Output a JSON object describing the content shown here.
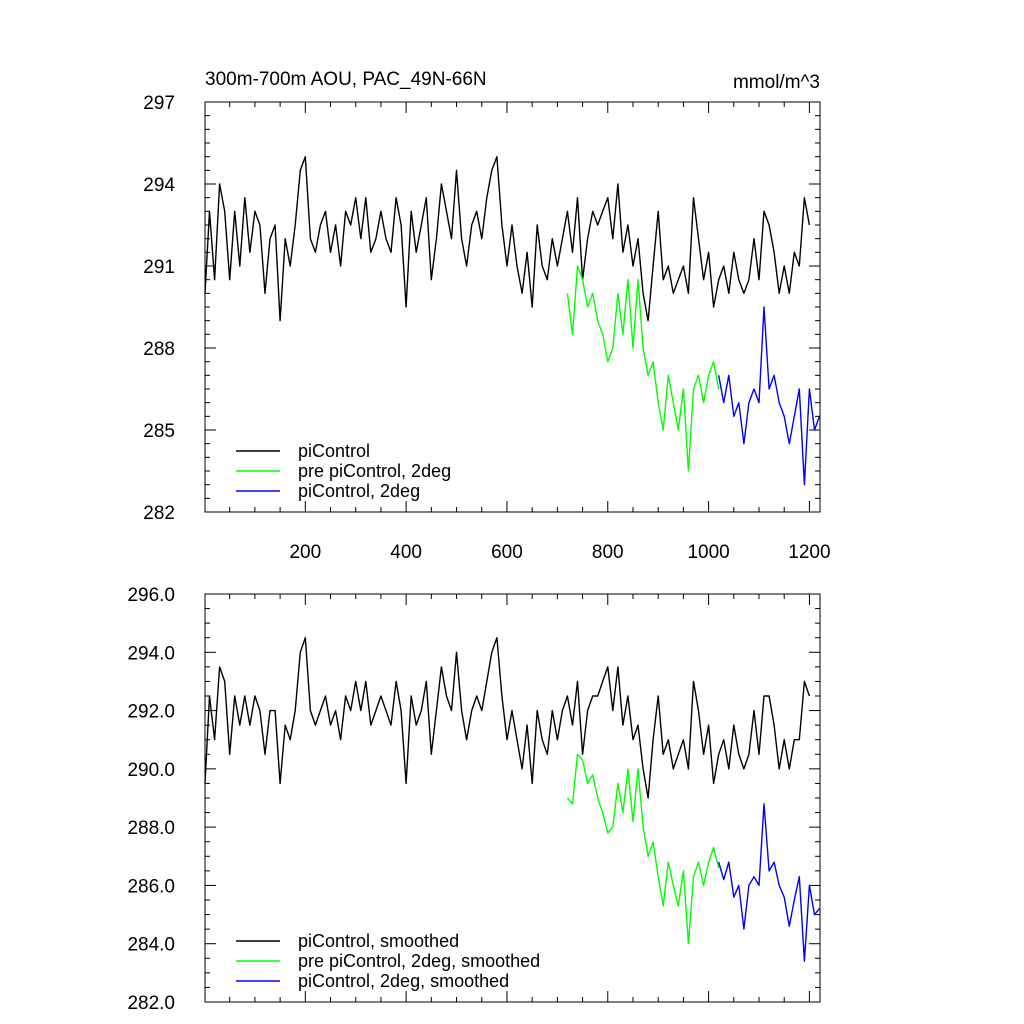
{
  "chart_data": [
    {
      "type": "line",
      "title": "300m-700m AOU, PAC_49N-66N",
      "units": "mmol/m^3",
      "xlim": [
        1,
        1221
      ],
      "ylim": [
        282,
        297
      ],
      "xticks": [
        200,
        400,
        600,
        800,
        1000,
        1200
      ],
      "xtick_labels": [
        "200",
        "400",
        "600",
        "800",
        "1000",
        "1200"
      ],
      "yticks": [
        282,
        285,
        288,
        291,
        294,
        297
      ],
      "ytick_labels": [
        "282",
        "285",
        "288",
        "291",
        "294",
        "297"
      ],
      "legend": "lower-left",
      "series": [
        {
          "name": "piControl",
          "color": "#000000",
          "x": [
            1,
            10,
            20,
            30,
            40,
            50,
            60,
            70,
            80,
            90,
            100,
            110,
            120,
            130,
            140,
            150,
            160,
            170,
            180,
            190,
            200,
            210,
            220,
            230,
            240,
            250,
            260,
            270,
            280,
            290,
            300,
            310,
            320,
            330,
            340,
            350,
            360,
            370,
            380,
            390,
            400,
            410,
            420,
            430,
            440,
            450,
            460,
            470,
            480,
            490,
            500,
            510,
            520,
            530,
            540,
            550,
            560,
            570,
            580,
            590,
            600,
            610,
            620,
            630,
            640,
            650,
            660,
            670,
            680,
            690,
            700,
            710,
            720,
            730,
            740,
            750,
            760,
            770,
            780,
            790,
            800,
            810,
            820,
            830,
            840,
            850,
            860,
            870,
            880,
            890,
            900,
            910,
            920,
            930,
            940,
            950,
            960,
            970,
            980,
            990,
            1000,
            1010,
            1020,
            1030,
            1040,
            1050,
            1060,
            1070,
            1080,
            1090,
            1100,
            1110,
            1120,
            1130,
            1140,
            1150,
            1160,
            1170,
            1180,
            1190,
            1200
          ],
          "y": [
            290.0,
            293.0,
            290.5,
            294.0,
            293.0,
            290.5,
            293.0,
            291.0,
            293.5,
            291.5,
            293.0,
            292.5,
            290.0,
            292.0,
            292.5,
            289.0,
            292.0,
            291.0,
            292.5,
            294.5,
            295.0,
            292.0,
            291.5,
            292.5,
            293.0,
            291.5,
            292.5,
            291.0,
            293.0,
            292.5,
            293.5,
            292.0,
            293.5,
            291.5,
            292.0,
            293.0,
            292.0,
            291.5,
            293.5,
            292.5,
            289.5,
            293.0,
            291.5,
            292.5,
            293.5,
            290.5,
            292.0,
            294.0,
            293.0,
            292.0,
            294.5,
            292.0,
            291.0,
            292.5,
            293.0,
            292.0,
            293.5,
            294.5,
            295.0,
            292.5,
            291.0,
            292.5,
            291.0,
            290.0,
            291.5,
            289.5,
            292.5,
            291.0,
            290.5,
            292.0,
            291.0,
            292.0,
            293.0,
            291.5,
            293.5,
            290.5,
            292.0,
            293.0,
            292.5,
            293.0,
            293.5,
            292.0,
            294.0,
            291.5,
            292.5,
            291.0,
            292.0,
            290.0,
            289.0,
            291.0,
            293.0,
            290.5,
            291.0,
            290.0,
            290.5,
            291.0,
            290.0,
            293.5,
            292.0,
            290.5,
            291.5,
            289.5,
            290.5,
            291.0,
            290.0,
            291.5,
            290.5,
            290.0,
            290.5,
            292.0,
            290.5,
            293.0,
            292.5,
            291.5,
            290.0,
            291.0,
            290.0,
            291.5,
            291.0,
            293.5,
            292.5
          ]
        },
        {
          "name": "pre piControl, 2deg",
          "color": "#00ff00",
          "x": [
            720,
            730,
            740,
            750,
            760,
            770,
            780,
            790,
            800,
            810,
            820,
            830,
            840,
            850,
            860,
            870,
            880,
            890,
            900,
            910,
            920,
            930,
            940,
            950,
            960,
            970,
            980,
            990,
            1000,
            1010,
            1020
          ],
          "y": [
            290.0,
            288.5,
            291.0,
            290.5,
            289.5,
            290.0,
            289.0,
            288.5,
            287.5,
            288.0,
            290.0,
            288.5,
            290.5,
            288.0,
            290.5,
            288.0,
            287.0,
            287.5,
            286.0,
            285.0,
            287.0,
            286.0,
            285.0,
            286.5,
            283.5,
            286.5,
            287.0,
            286.0,
            287.0,
            287.5,
            286.5
          ]
        },
        {
          "name": "piControl, 2deg",
          "color": "#0000ff",
          "x": [
            1020,
            1030,
            1040,
            1050,
            1060,
            1070,
            1080,
            1090,
            1100,
            1110,
            1120,
            1130,
            1140,
            1150,
            1160,
            1170,
            1180,
            1190,
            1200,
            1210,
            1220
          ],
          "y": [
            287.0,
            286.0,
            287.0,
            285.5,
            286.0,
            284.5,
            286.0,
            286.5,
            286.0,
            289.5,
            286.5,
            287.0,
            286.0,
            285.5,
            284.5,
            285.5,
            286.5,
            283.0,
            286.5,
            285.0,
            285.5
          ]
        }
      ]
    },
    {
      "type": "line",
      "xlim": [
        1,
        1221
      ],
      "ylim": [
        282,
        296
      ],
      "xticks": [
        200,
        400,
        600,
        800,
        1000,
        1200
      ],
      "yticks": [
        282,
        284,
        286,
        288,
        290,
        292,
        294,
        296
      ],
      "ytick_labels": [
        "282.0",
        "284.0",
        "286.0",
        "288.0",
        "290.0",
        "292.0",
        "294.0",
        "296.0"
      ],
      "legend": "lower-left",
      "series": [
        {
          "name": "piControl, smoothed",
          "color": "#000000",
          "x": [
            1,
            10,
            20,
            30,
            40,
            50,
            60,
            70,
            80,
            90,
            100,
            110,
            120,
            130,
            140,
            150,
            160,
            170,
            180,
            190,
            200,
            210,
            220,
            230,
            240,
            250,
            260,
            270,
            280,
            290,
            300,
            310,
            320,
            330,
            340,
            350,
            360,
            370,
            380,
            390,
            400,
            410,
            420,
            430,
            440,
            450,
            460,
            470,
            480,
            490,
            500,
            510,
            520,
            530,
            540,
            550,
            560,
            570,
            580,
            590,
            600,
            610,
            620,
            630,
            640,
            650,
            660,
            670,
            680,
            690,
            700,
            710,
            720,
            730,
            740,
            750,
            760,
            770,
            780,
            790,
            800,
            810,
            820,
            830,
            840,
            850,
            860,
            870,
            880,
            890,
            900,
            910,
            920,
            930,
            940,
            950,
            960,
            970,
            980,
            990,
            1000,
            1010,
            1020,
            1030,
            1040,
            1050,
            1060,
            1070,
            1080,
            1090,
            1100,
            1110,
            1120,
            1130,
            1140,
            1150,
            1160,
            1170,
            1180,
            1190,
            1200
          ],
          "y": [
            289.5,
            292.5,
            291.0,
            293.5,
            293.0,
            290.5,
            292.5,
            291.5,
            292.5,
            291.5,
            292.5,
            292.0,
            290.5,
            292.0,
            292.0,
            289.5,
            291.5,
            291.0,
            292.0,
            294.0,
            294.5,
            292.0,
            291.5,
            292.0,
            292.5,
            291.5,
            292.0,
            291.0,
            292.5,
            292.0,
            293.0,
            292.0,
            293.0,
            291.5,
            292.0,
            292.5,
            292.0,
            291.5,
            293.0,
            292.0,
            289.5,
            292.5,
            291.5,
            292.0,
            293.0,
            290.5,
            292.0,
            293.5,
            292.5,
            292.0,
            294.0,
            292.0,
            291.0,
            292.0,
            292.5,
            292.0,
            293.0,
            294.0,
            294.5,
            292.5,
            291.0,
            292.0,
            291.0,
            290.0,
            291.5,
            289.5,
            292.0,
            291.0,
            290.5,
            292.0,
            291.0,
            292.0,
            292.5,
            291.5,
            293.0,
            290.5,
            292.0,
            292.5,
            292.5,
            293.0,
            293.5,
            292.0,
            293.5,
            291.5,
            292.5,
            291.0,
            291.5,
            290.0,
            289.0,
            291.0,
            292.5,
            290.5,
            291.0,
            290.0,
            290.5,
            291.0,
            290.0,
            293.0,
            292.0,
            290.5,
            291.5,
            289.5,
            290.5,
            291.0,
            290.0,
            291.5,
            290.5,
            290.0,
            290.5,
            292.0,
            290.5,
            292.5,
            292.5,
            291.5,
            290.0,
            291.0,
            290.0,
            291.0,
            291.0,
            293.0,
            292.5
          ]
        },
        {
          "name": "pre piControl, 2deg, smoothed",
          "color": "#00ff00",
          "x": [
            720,
            730,
            740,
            750,
            760,
            770,
            780,
            790,
            800,
            810,
            820,
            830,
            840,
            850,
            860,
            870,
            880,
            890,
            900,
            910,
            920,
            930,
            940,
            950,
            960,
            970,
            980,
            990,
            1000,
            1010,
            1020
          ],
          "y": [
            289.0,
            288.8,
            290.5,
            290.3,
            289.5,
            289.8,
            289.0,
            288.5,
            287.8,
            288.0,
            289.5,
            288.5,
            290.0,
            288.2,
            290.0,
            288.0,
            287.0,
            287.5,
            286.3,
            285.3,
            286.8,
            286.0,
            285.3,
            286.5,
            284.0,
            286.3,
            286.8,
            286.0,
            286.8,
            287.3,
            286.6
          ]
        },
        {
          "name": "piControl, 2deg, smoothed",
          "color": "#0000ff",
          "x": [
            1020,
            1030,
            1040,
            1050,
            1060,
            1070,
            1080,
            1090,
            1100,
            1110,
            1120,
            1130,
            1140,
            1150,
            1160,
            1170,
            1180,
            1190,
            1200,
            1210,
            1220
          ],
          "y": [
            286.8,
            286.2,
            286.8,
            285.6,
            286.0,
            284.5,
            286.0,
            286.3,
            286.0,
            288.8,
            286.5,
            286.8,
            286.0,
            285.6,
            284.6,
            285.5,
            286.3,
            283.4,
            286.0,
            285.0,
            285.2
          ]
        }
      ]
    }
  ]
}
